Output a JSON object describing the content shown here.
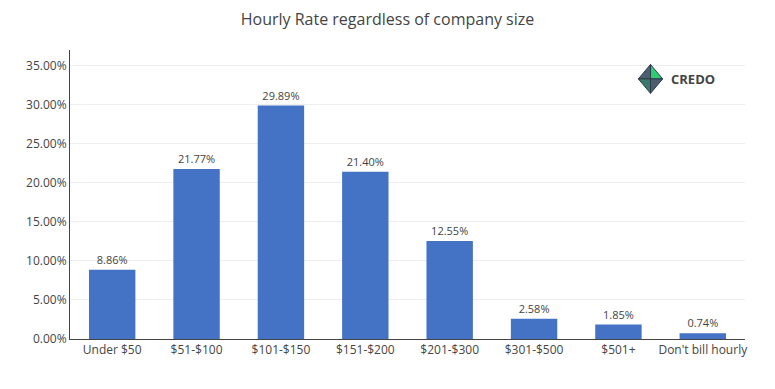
{
  "chart_data": {
    "type": "bar",
    "title": "Hourly Rate regardless of company size",
    "categories": [
      "Under $50",
      "$51-$100",
      "$101-$150",
      "$151-$200",
      "$201-$300",
      "$301-$500",
      "$501+",
      "Don't bill hourly"
    ],
    "values": [
      8.86,
      21.77,
      29.89,
      21.4,
      12.55,
      2.58,
      1.85,
      0.74
    ],
    "value_labels": [
      "8.86%",
      "21.77%",
      "29.89%",
      "21.40%",
      "12.55%",
      "2.58%",
      "1.85%",
      "0.74%"
    ],
    "data_labels": true,
    "color": "#4472C4",
    "ylim": [
      0,
      37
    ],
    "yticks": [
      {
        "value": 0,
        "label": "0.00%"
      },
      {
        "value": 5,
        "label": "5.00%"
      },
      {
        "value": 10,
        "label": "10.00%"
      },
      {
        "value": 15,
        "label": "15.00%"
      },
      {
        "value": 20,
        "label": "20.00%"
      },
      {
        "value": 25,
        "label": "25.00%"
      },
      {
        "value": 30,
        "label": "30.00%"
      },
      {
        "value": 35,
        "label": "35.00%"
      }
    ],
    "grid": true,
    "annotations": [
      "CREDO"
    ]
  }
}
